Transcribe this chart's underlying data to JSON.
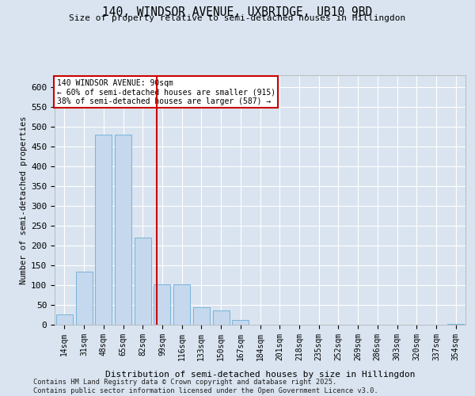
{
  "title_line1": "140, WINDSOR AVENUE, UXBRIDGE, UB10 9BD",
  "title_line2": "Size of property relative to semi-detached houses in Hillingdon",
  "xlabel": "Distribution of semi-detached houses by size in Hillingdon",
  "ylabel": "Number of semi-detached properties",
  "categories": [
    "14sqm",
    "31sqm",
    "48sqm",
    "65sqm",
    "82sqm",
    "99sqm",
    "116sqm",
    "133sqm",
    "150sqm",
    "167sqm",
    "184sqm",
    "201sqm",
    "218sqm",
    "235sqm",
    "252sqm",
    "269sqm",
    "286sqm",
    "303sqm",
    "320sqm",
    "337sqm",
    "354sqm"
  ],
  "values": [
    27,
    135,
    480,
    480,
    220,
    103,
    103,
    45,
    37,
    12,
    0,
    0,
    0,
    0,
    0,
    0,
    0,
    0,
    0,
    0,
    3
  ],
  "bar_color": "#c5d8ee",
  "bar_edge_color": "#6aaed6",
  "vline_index": 4.72,
  "vline_color": "#cc0000",
  "annotation_text": "140 WINDSOR AVENUE: 90sqm\n← 60% of semi-detached houses are smaller (915)\n38% of semi-detached houses are larger (587) →",
  "annotation_box_color": "#ffffff",
  "annotation_box_edge": "#cc0000",
  "ylim": [
    0,
    630
  ],
  "yticks": [
    0,
    50,
    100,
    150,
    200,
    250,
    300,
    350,
    400,
    450,
    500,
    550,
    600
  ],
  "background_color": "#d9e4f0",
  "grid_color": "#ffffff",
  "footer": "Contains HM Land Registry data © Crown copyright and database right 2025.\nContains public sector information licensed under the Open Government Licence v3.0."
}
